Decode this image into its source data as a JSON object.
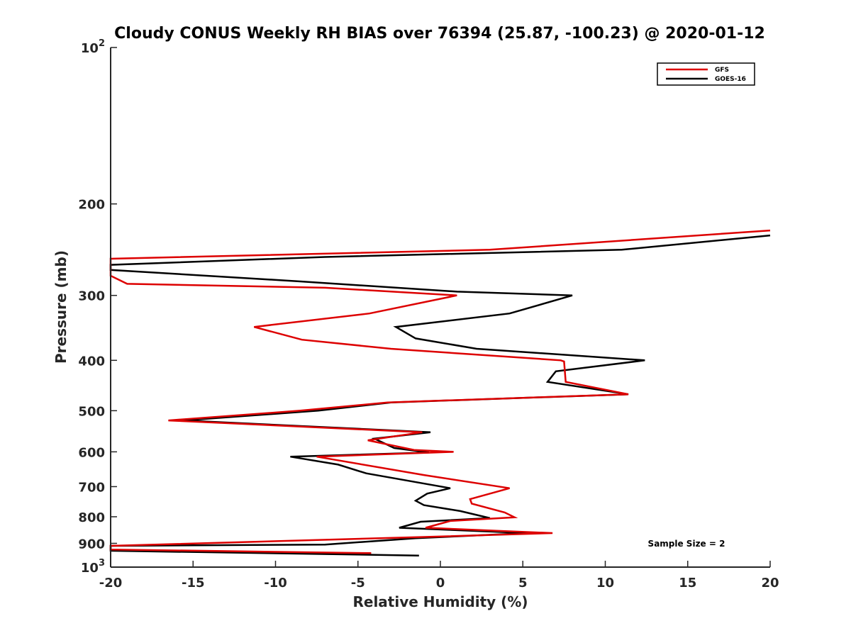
{
  "chart_data": {
    "type": "line",
    "title": "Cloudy CONUS Weekly RH BIAS over 76394 (25.87, -100.23) @ 2020-01-12",
    "xlabel": "Relative Humidity (%)",
    "ylabel": "Pressure (mb)",
    "xlim": [
      -20,
      20
    ],
    "ylim": [
      100,
      1000
    ],
    "yscale": "log",
    "y_reversed": true,
    "xticks": [
      "-20",
      "-15",
      "-10",
      "-5",
      "0",
      "5",
      "10",
      "15",
      "20"
    ],
    "yticks": [
      {
        "value": 100,
        "base": "10",
        "exp": "2"
      },
      {
        "value": 200,
        "label": "200"
      },
      {
        "value": 300,
        "label": "300"
      },
      {
        "value": 400,
        "label": "400"
      },
      {
        "value": 500,
        "label": "500"
      },
      {
        "value": 600,
        "label": "600"
      },
      {
        "value": 700,
        "label": "700"
      },
      {
        "value": 800,
        "label": "800"
      },
      {
        "value": 900,
        "label": "900"
      },
      {
        "value": 1000,
        "base": "10",
        "exp": "3"
      }
    ],
    "legend_position": "top-right",
    "grid": false,
    "annotation": "Sample Size = 2",
    "series": [
      {
        "name": "GFS",
        "color": "#dd0000",
        "x": [
          20,
          3,
          -20,
          -20,
          -19,
          -7,
          1,
          -4.3,
          -11.3,
          -8.4,
          -3,
          7.3,
          7.5,
          7.6,
          11.4,
          -3.2,
          -8.5,
          -16.5,
          -1.1,
          -4.4,
          -1.6,
          0.8,
          -7.5,
          -1,
          4.2,
          1.8,
          1.9,
          3.9,
          4.5,
          0.6,
          -0.9,
          6.8,
          -1,
          -20,
          -20,
          -4.2
        ],
        "y": [
          225,
          245,
          255,
          275,
          285,
          290,
          300,
          325,
          345,
          365,
          380,
          400,
          402,
          440,
          465,
          482,
          500,
          522,
          550,
          570,
          595,
          600,
          613,
          665,
          705,
          740,
          755,
          785,
          802,
          815,
          840,
          860,
          875,
          910,
          925,
          940
        ]
      },
      {
        "name": "GOES-16",
        "color": "#000000",
        "x": [
          20,
          11,
          -7,
          -20,
          -20,
          -8.5,
          1,
          8,
          4.2,
          -2.7,
          -1.5,
          2.2,
          12.4,
          7,
          6.5,
          11.4,
          -3,
          -7.4,
          -15.6,
          -0.6,
          -4,
          -2.8,
          -1,
          -0.7,
          -9.1,
          -6.2,
          -4.5,
          0.6,
          -0.8,
          -1.5,
          -1,
          1.2,
          3,
          -1.2,
          -2.5,
          5.3,
          -1.5,
          -7,
          -20,
          -20,
          -1.3
        ],
        "y": [
          230,
          245,
          253,
          262,
          268,
          282,
          295,
          300,
          325,
          345,
          363,
          380,
          400,
          420,
          440,
          465,
          482,
          500,
          522,
          550,
          566,
          590,
          600,
          602,
          613,
          635,
          660,
          705,
          722,
          745,
          760,
          780,
          805,
          818,
          840,
          860,
          880,
          905,
          910,
          930,
          950
        ]
      }
    ]
  }
}
